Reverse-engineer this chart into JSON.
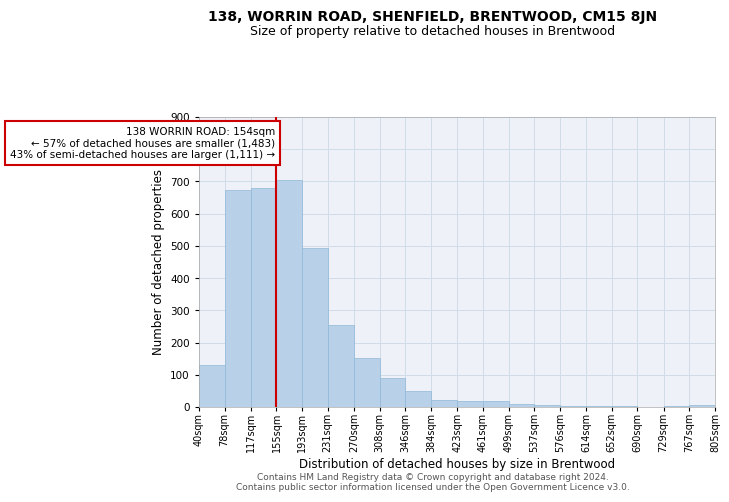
{
  "title1": "138, WORRIN ROAD, SHENFIELD, BRENTWOOD, CM15 8JN",
  "title2": "Size of property relative to detached houses in Brentwood",
  "xlabel": "Distribution of detached houses by size in Brentwood",
  "ylabel": "Number of detached properties",
  "footer1": "Contains HM Land Registry data © Crown copyright and database right 2024.",
  "footer2": "Contains public sector information licensed under the Open Government Licence v3.0.",
  "annotation_line1": "138 WORRIN ROAD: 154sqm",
  "annotation_line2": "← 57% of detached houses are smaller (1,483)",
  "annotation_line3": "43% of semi-detached houses are larger (1,111) →",
  "property_size": 154,
  "bin_edges": [
    40,
    78,
    117,
    155,
    193,
    231,
    270,
    308,
    346,
    384,
    423,
    461,
    499,
    537,
    576,
    614,
    652,
    690,
    729,
    767,
    805
  ],
  "bar_values": [
    130,
    675,
    680,
    706,
    495,
    255,
    152,
    90,
    50,
    22,
    18,
    18,
    10,
    7,
    4,
    4,
    2,
    1,
    4,
    6
  ],
  "bar_color": "#b8d0e8",
  "bar_edge_color": "#90b8d8",
  "vline_color": "#cc0000",
  "box_edge_color": "#cc0000",
  "grid_color": "#d0dce8",
  "bg_color": "#eef2f8",
  "ylim": [
    0,
    900
  ],
  "yticks": [
    0,
    100,
    200,
    300,
    400,
    500,
    600,
    700,
    800,
    900
  ],
  "title_fontsize": 10,
  "subtitle_fontsize": 9,
  "axis_label_fontsize": 8.5,
  "tick_fontsize": 7.5,
  "annotation_fontsize": 7.5,
  "footer_fontsize": 6.5
}
